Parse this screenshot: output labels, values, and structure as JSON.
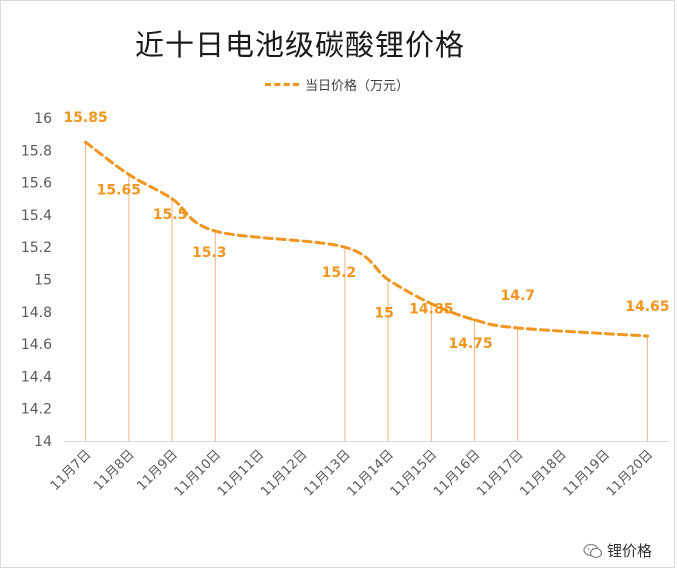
{
  "chart_data": {
    "type": "line",
    "title": "近十日电池级碳酸锂价格",
    "series": [
      {
        "name": "当日价格（万元）",
        "values": [
          15.85,
          15.65,
          15.5,
          15.3,
          null,
          null,
          15.2,
          15.0,
          14.85,
          14.75,
          14.7,
          null,
          null,
          14.65
        ]
      }
    ],
    "categories": [
      "11月7日",
      "11月8日",
      "11月9日",
      "11月10日",
      "11月11日",
      "11月12日",
      "11月13日",
      "11月14日",
      "11月15日",
      "11月16日",
      "11月17日",
      "11月18日",
      "11月19日",
      "11月20日"
    ],
    "data_labels": [
      "15.85",
      "15.65",
      "15.5",
      "15.3",
      "",
      "",
      "15.2",
      "15",
      "14.85",
      "14.75",
      "14.7",
      "",
      "",
      "14.65"
    ],
    "yticks": [
      "14",
      "14.2",
      "14.4",
      "14.6",
      "14.8",
      "15",
      "15.2",
      "15.4",
      "15.6",
      "15.8",
      "16"
    ],
    "ylim": [
      14,
      16
    ],
    "xlabel": "",
    "ylabel": "",
    "legend": "top",
    "grid": false,
    "line_color": "#f0961e",
    "drop_line_color": "#f4b183"
  },
  "watermark": {
    "text": "锂价格",
    "icon": "wechat-icon"
  }
}
